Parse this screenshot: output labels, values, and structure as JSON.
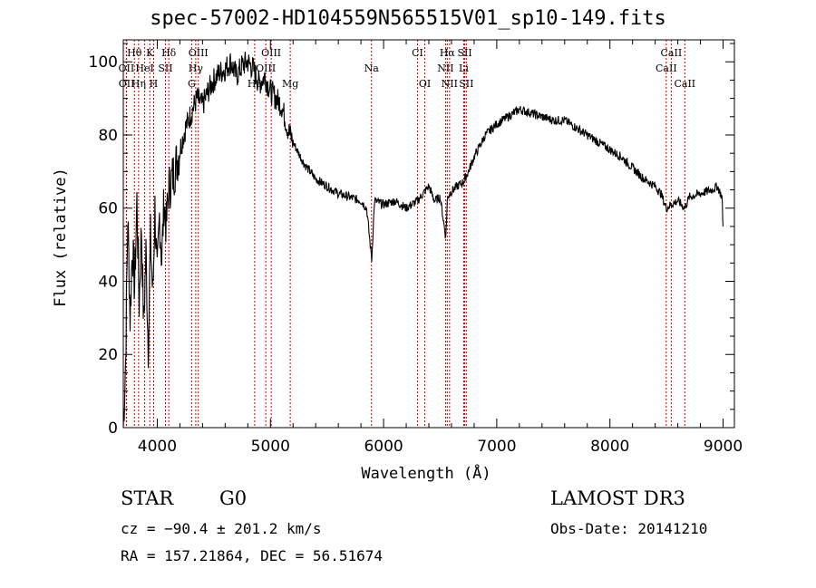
{
  "chart_data": {
    "type": "line",
    "title": "spec-57002-HD104559N565515V01_sp10-149.fits",
    "xlabel": "Wavelength (Å)",
    "ylabel": "Flux (relative)",
    "xlim": [
      3700,
      9100
    ],
    "ylim": [
      0,
      106
    ],
    "xticks": [
      4000,
      5000,
      6000,
      7000,
      8000,
      9000
    ],
    "yticks": [
      0,
      20,
      40,
      60,
      80,
      100
    ],
    "series": [
      {
        "name": "flux",
        "x": [
          3700,
          3720,
          3740,
          3760,
          3780,
          3800,
          3820,
          3840,
          3860,
          3880,
          3900,
          3920,
          3940,
          3960,
          3980,
          4000,
          4020,
          4040,
          4060,
          4080,
          4100,
          4150,
          4200,
          4250,
          4300,
          4350,
          4400,
          4450,
          4500,
          4550,
          4600,
          4650,
          4700,
          4750,
          4800,
          4850,
          4900,
          4950,
          5000,
          5050,
          5100,
          5150,
          5200,
          5300,
          5400,
          5500,
          5600,
          5700,
          5800,
          5850,
          5895,
          5920,
          6000,
          6100,
          6200,
          6300,
          6350,
          6400,
          6450,
          6500,
          6550,
          6563,
          6580,
          6650,
          6700,
          6750,
          6800,
          6900,
          7000,
          7100,
          7200,
          7300,
          7400,
          7500,
          7600,
          7700,
          7800,
          7900,
          8000,
          8100,
          8200,
          8300,
          8400,
          8450,
          8498,
          8542,
          8600,
          8662,
          8700,
          8800,
          8900,
          8950,
          8990,
          9000
        ],
        "y": [
          0,
          18,
          58,
          30,
          50,
          38,
          62,
          34,
          55,
          28,
          48,
          22,
          52,
          36,
          60,
          40,
          58,
          46,
          62,
          55,
          65,
          70,
          76,
          82,
          86,
          90,
          88,
          92,
          95,
          97,
          98,
          100,
          96,
          99,
          100,
          98,
          94,
          96,
          92,
          90,
          88,
          82,
          78,
          72,
          68,
          66,
          64,
          63,
          62,
          60,
          46,
          62,
          61,
          62,
          60,
          62,
          64,
          66,
          62,
          63,
          52,
          62,
          64,
          66,
          67,
          70,
          74,
          80,
          83,
          85,
          87,
          86,
          85,
          84,
          84,
          82,
          80,
          78,
          76,
          74,
          71,
          68,
          66,
          64,
          60,
          61,
          62,
          60,
          63,
          64,
          65,
          66,
          63,
          55
        ]
      }
    ]
  },
  "lines": [
    {
      "label": "Hθ",
      "wave": 3798,
      "row": 1
    },
    {
      "label": "K",
      "wave": 3934,
      "row": 1
    },
    {
      "label": "Hδ",
      "wave": 4102,
      "row": 1
    },
    {
      "label": "OIII",
      "wave": 4363,
      "row": 1
    },
    {
      "label": "OIII",
      "wave": 5007,
      "row": 1
    },
    {
      "label": "CI",
      "wave": 6300,
      "row": 1
    },
    {
      "label": "Hα",
      "wave": 6563,
      "row": 1
    },
    {
      "label": "SII",
      "wave": 6717,
      "row": 1
    },
    {
      "label": "CaII",
      "wave": 8542,
      "row": 1
    },
    {
      "label": "OII",
      "wave": 3727,
      "row": 2
    },
    {
      "label": "HeI",
      "wave": 3889,
      "row": 2
    },
    {
      "label": "SII",
      "wave": 4072,
      "row": 2
    },
    {
      "label": "Hγ",
      "wave": 4340,
      "row": 2
    },
    {
      "label": "OIII",
      "wave": 4959,
      "row": 2
    },
    {
      "label": "Na",
      "wave": 5893,
      "row": 2
    },
    {
      "label": "NII",
      "wave": 6548,
      "row": 2
    },
    {
      "label": "Li",
      "wave": 6708,
      "row": 2
    },
    {
      "label": "CaII",
      "wave": 8498,
      "row": 2
    },
    {
      "label": "OII",
      "wave": 3729,
      "row": 3
    },
    {
      "label": "Hη",
      "wave": 3835,
      "row": 3
    },
    {
      "label": "H",
      "wave": 3968,
      "row": 3
    },
    {
      "label": "G",
      "wave": 4304,
      "row": 3
    },
    {
      "label": "Hβ",
      "wave": 4861,
      "row": 3
    },
    {
      "label": "Mg",
      "wave": 5175,
      "row": 3
    },
    {
      "label": "OI",
      "wave": 6364,
      "row": 3
    },
    {
      "label": "NII",
      "wave": 6583,
      "row": 3
    },
    {
      "label": "SII",
      "wave": 6731,
      "row": 3
    },
    {
      "label": "CaII",
      "wave": 8662,
      "row": 3
    }
  ],
  "info": {
    "class": "STAR",
    "subclass": "G0",
    "survey": "LAMOST DR3",
    "cz": "cz = −90.4 ± 201.2 km/s",
    "obsdate": "Obs-Date: 20141210",
    "radec": "RA = 157.21864, DEC =  56.51674"
  },
  "colors": {
    "line_marker": "#cc0000",
    "spectrum": "#000000",
    "axes": "#000000"
  }
}
